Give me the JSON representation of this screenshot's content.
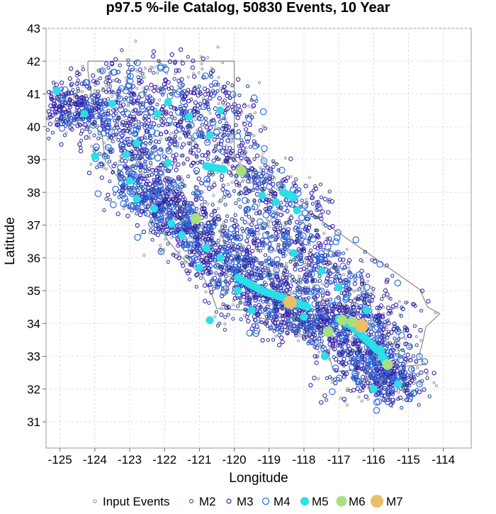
{
  "chart_data": {
    "type": "scatter",
    "title": "p97.5 %-ile Catalog, 50830 Events, 10 Year",
    "xlabel": "Longitude",
    "ylabel": "Latitude",
    "xlim": [
      -125.4,
      -113.2
    ],
    "ylim": [
      30.2,
      43
    ],
    "xticks": [
      -125,
      -124,
      -123,
      -122,
      -121,
      -120,
      -119,
      -118,
      -117,
      -116,
      -115,
      -114
    ],
    "xtick_labels": [
      "-125",
      "-124",
      "-123",
      "-122",
      "-121",
      "-120",
      "-119",
      "-118",
      "-117",
      "-116",
      "-115",
      "-114"
    ],
    "yticks": [
      31,
      32,
      33,
      34,
      35,
      36,
      37,
      38,
      39,
      40,
      41,
      42,
      43
    ],
    "ytick_labels": [
      "31",
      "32",
      "33",
      "34",
      "35",
      "36",
      "37",
      "38",
      "39",
      "40",
      "41",
      "42",
      "43"
    ],
    "grid": true,
    "legend_position": "bottom",
    "series": [
      {
        "name": "Input Events",
        "color": "#888888",
        "marker": "open-circle-small"
      },
      {
        "name": "M2",
        "color": "#1a3a8f",
        "marker": "open-circle-small"
      },
      {
        "name": "M3",
        "color": "#3a1fb0",
        "marker": "open-circle-small"
      },
      {
        "name": "M4",
        "color": "#2a6fe0",
        "marker": "open-circle"
      },
      {
        "name": "M5",
        "color": "#28e0e8",
        "marker": "filled-circle"
      },
      {
        "name": "M6",
        "color": "#a8e080",
        "marker": "filled-circle"
      },
      {
        "name": "M7",
        "color": "#e8bf6a",
        "marker": "filled-circle-large"
      }
    ],
    "major_events": {
      "M7": [
        {
          "x": -118.4,
          "y": 34.65
        },
        {
          "x": -116.35,
          "y": 33.93
        }
      ],
      "M6": [
        {
          "x": -121.1,
          "y": 37.2
        },
        {
          "x": -119.8,
          "y": 38.65
        },
        {
          "x": -116.9,
          "y": 34.1
        },
        {
          "x": -117.3,
          "y": 33.75
        },
        {
          "x": -115.6,
          "y": 32.75
        },
        {
          "x": -116.6,
          "y": 34.05
        }
      ],
      "M5": [
        {
          "x": -125.1,
          "y": 41.1
        },
        {
          "x": -124.3,
          "y": 40.4
        },
        {
          "x": -123.5,
          "y": 40.7
        },
        {
          "x": -123.1,
          "y": 39.15
        },
        {
          "x": -122.8,
          "y": 39.5
        },
        {
          "x": -122.2,
          "y": 40.4
        },
        {
          "x": -121.9,
          "y": 40.75
        },
        {
          "x": -121.3,
          "y": 40.3
        },
        {
          "x": -120.7,
          "y": 39.75
        },
        {
          "x": -120.4,
          "y": 40.5
        },
        {
          "x": -123.0,
          "y": 38.35
        },
        {
          "x": -122.8,
          "y": 37.8
        },
        {
          "x": -122.3,
          "y": 37.5
        },
        {
          "x": -121.8,
          "y": 37.05
        },
        {
          "x": -121.5,
          "y": 36.7
        },
        {
          "x": -120.8,
          "y": 36.3
        },
        {
          "x": -120.4,
          "y": 36.0
        },
        {
          "x": -121.0,
          "y": 35.7
        },
        {
          "x": -119.9,
          "y": 35.0
        },
        {
          "x": -119.5,
          "y": 34.4
        },
        {
          "x": -118.0,
          "y": 34.2
        },
        {
          "x": -119.2,
          "y": 37.9
        },
        {
          "x": -118.8,
          "y": 37.7
        },
        {
          "x": -118.2,
          "y": 37.45
        },
        {
          "x": -118.3,
          "y": 36.15
        },
        {
          "x": -117.5,
          "y": 35.6
        },
        {
          "x": -117.0,
          "y": 35.1
        },
        {
          "x": -116.2,
          "y": 34.4
        },
        {
          "x": -115.8,
          "y": 33.2
        },
        {
          "x": -115.3,
          "y": 32.15
        },
        {
          "x": -116.0,
          "y": 32.0
        },
        {
          "x": -120.7,
          "y": 34.1
        },
        {
          "x": -117.4,
          "y": 33.0
        },
        {
          "x": -121.9,
          "y": 38.9
        },
        {
          "x": -124.0,
          "y": 39.1
        }
      ]
    }
  },
  "legend": {
    "items": [
      "Input Events",
      "M2",
      "M3",
      "M4",
      "M5",
      "M6",
      "M7"
    ]
  }
}
